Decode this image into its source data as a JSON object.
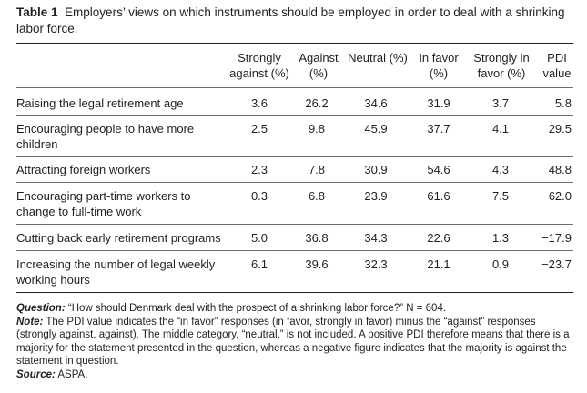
{
  "caption": {
    "label": "Table 1",
    "text": "Employers’ views on which instruments should be employed in order to deal with a shrinking labor force."
  },
  "headers": [
    "Strongly against (%)",
    "Against (%)",
    "Neutral (%)",
    "In favor (%)",
    "Strongly in favor (%)",
    "PDI value"
  ],
  "rows": [
    {
      "label": "Raising the legal retirement age",
      "values": [
        "3.6",
        "26.2",
        "34.6",
        "31.9",
        "3.7",
        "5.8"
      ]
    },
    {
      "label": "Encouraging people to have more children",
      "values": [
        "2.5",
        "9.8",
        "45.9",
        "37.7",
        "4.1",
        "29.5"
      ]
    },
    {
      "label": "Attracting foreign workers",
      "values": [
        "2.3",
        "7.8",
        "30.9",
        "54.6",
        "4.3",
        "48.8"
      ]
    },
    {
      "label": "Encouraging part-time workers to change to full-time work",
      "values": [
        "0.3",
        "6.8",
        "23.9",
        "61.6",
        "7.5",
        "62.0"
      ]
    },
    {
      "label": "Cutting back early retirement programs",
      "values": [
        "5.0",
        "36.8",
        "34.3",
        "22.6",
        "1.3",
        "−17.9"
      ]
    },
    {
      "label": "Increasing the number of legal weekly working hours",
      "values": [
        "6.1",
        "39.6",
        "32.3",
        "21.1",
        "0.9",
        "−23.7"
      ]
    }
  ],
  "notes": {
    "question_label": "Question:",
    "question_text": "“How should Denmark deal with the prospect of a shrinking labor force?”  N = 604.",
    "note_label": "Note:",
    "note_text": "The PDI value indicates the “in favor” responses (in favor, strongly in favor) minus the “against” responses (strongly against, against). The middle category, “neutral,” is not included. A positive PDI therefore means that there is a majority for the statement presented in the question, whereas a negative figure indicates that the majority is against the statement in question.",
    "source_label": "Source:",
    "source_text": "ASPA."
  }
}
